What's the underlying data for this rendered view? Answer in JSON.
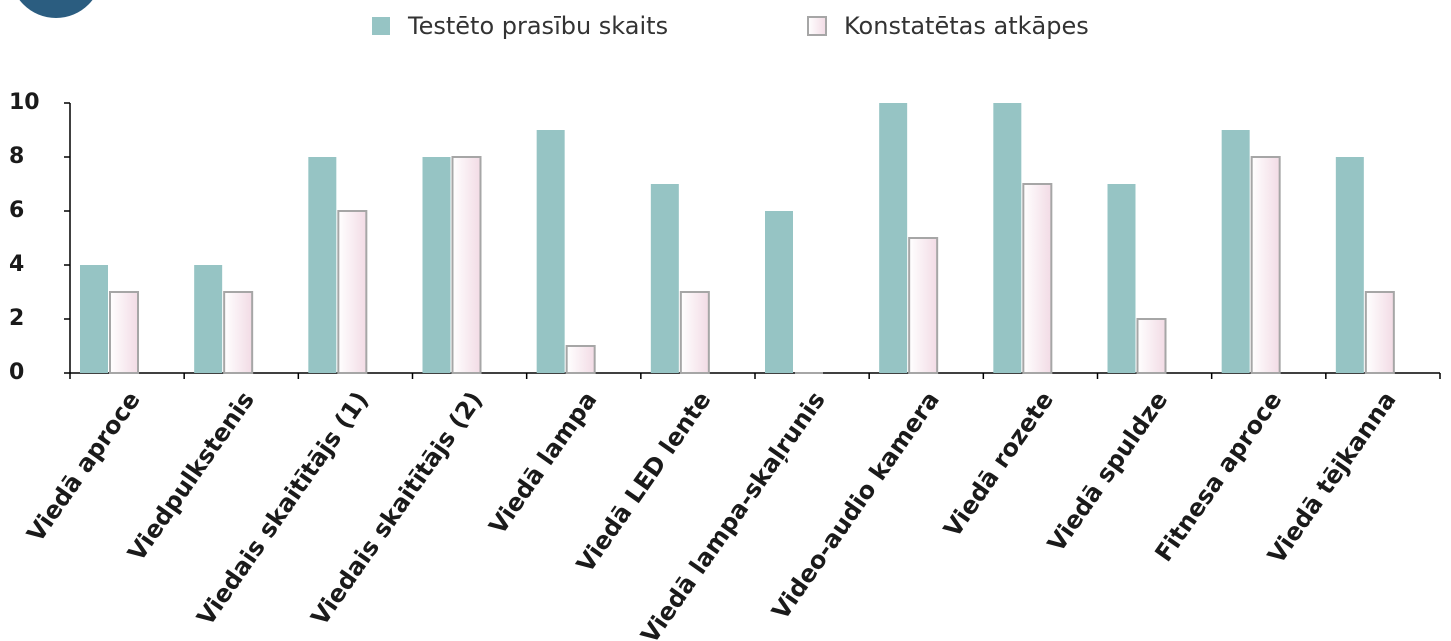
{
  "chart_data": {
    "type": "bar",
    "categories": [
      "Viedā aproce",
      "Viedpulkstenis",
      "Viedais skaitītājs (1)",
      "Viedais skaitītājs (2)",
      "Viedā lampa",
      "Viedā LED lente",
      "Viedā lampa-skaļrunis",
      "Video-audio kamera",
      "Viedā rozete",
      "Viedā spuldze",
      "Fitnesa aproce",
      "Viedā tējkanna"
    ],
    "series": [
      {
        "name": "Testēto prasību skaits",
        "color": "#96c4c4",
        "values": [
          4,
          4,
          8,
          8,
          9,
          7,
          6,
          10,
          10,
          7,
          9,
          8
        ]
      },
      {
        "name": "Konstatētas atkāpes",
        "color": "#f2dbe5",
        "edgecolor": "#a6a6a6",
        "values": [
          3,
          3,
          6,
          8,
          1,
          3,
          0,
          5,
          7,
          2,
          8,
          3
        ]
      }
    ],
    "ylim": [
      0,
      10
    ],
    "yticks": [
      0,
      2,
      4,
      6,
      8,
      10
    ],
    "grid": false
  }
}
